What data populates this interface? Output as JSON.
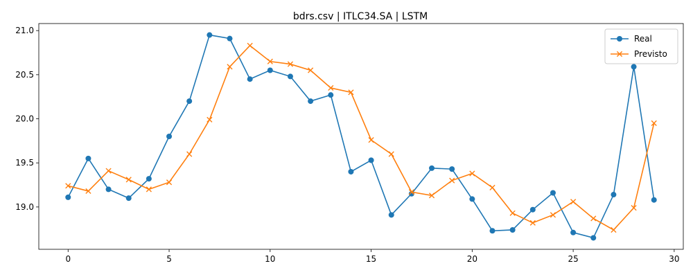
{
  "chart_data": {
    "type": "line",
    "title": "bdrs.csv | ITLC34.SA | LSTM",
    "xlabel": "",
    "ylabel": "",
    "xlim": [
      -1.45,
      30.45
    ],
    "ylim": [
      18.52,
      21.08
    ],
    "xticks": [
      0,
      5,
      10,
      15,
      20,
      25,
      30
    ],
    "yticks": [
      19.0,
      19.5,
      20.0,
      20.5,
      21.0
    ],
    "ytick_labels": [
      "19.0",
      "19.5",
      "20.0",
      "20.5",
      "21.0"
    ],
    "legend_position": "top-right",
    "grid": false,
    "x": [
      0,
      1,
      2,
      3,
      4,
      5,
      6,
      7,
      8,
      9,
      10,
      11,
      12,
      13,
      14,
      15,
      16,
      17,
      18,
      19,
      20,
      21,
      22,
      23,
      24,
      25,
      26,
      27,
      28,
      29
    ],
    "series": [
      {
        "name": "Real",
        "color": "#1f77b4",
        "marker": "circle",
        "values": [
          19.11,
          19.55,
          19.2,
          19.1,
          19.32,
          19.8,
          20.2,
          20.95,
          20.91,
          20.45,
          20.55,
          20.48,
          20.2,
          20.27,
          19.4,
          19.53,
          18.91,
          19.15,
          19.44,
          19.43,
          19.09,
          18.73,
          18.74,
          18.97,
          19.16,
          18.71,
          18.65,
          19.14,
          20.59,
          19.08
        ]
      },
      {
        "name": "Previsto",
        "color": "#ff7f0e",
        "marker": "x",
        "values": [
          19.24,
          19.18,
          19.41,
          19.31,
          19.2,
          19.28,
          19.6,
          19.99,
          20.59,
          20.83,
          20.65,
          20.62,
          20.55,
          20.35,
          20.3,
          19.76,
          19.6,
          19.17,
          19.13,
          19.3,
          19.38,
          19.22,
          18.93,
          18.82,
          18.91,
          19.06,
          18.87,
          18.74,
          18.99,
          19.95
        ]
      }
    ]
  }
}
